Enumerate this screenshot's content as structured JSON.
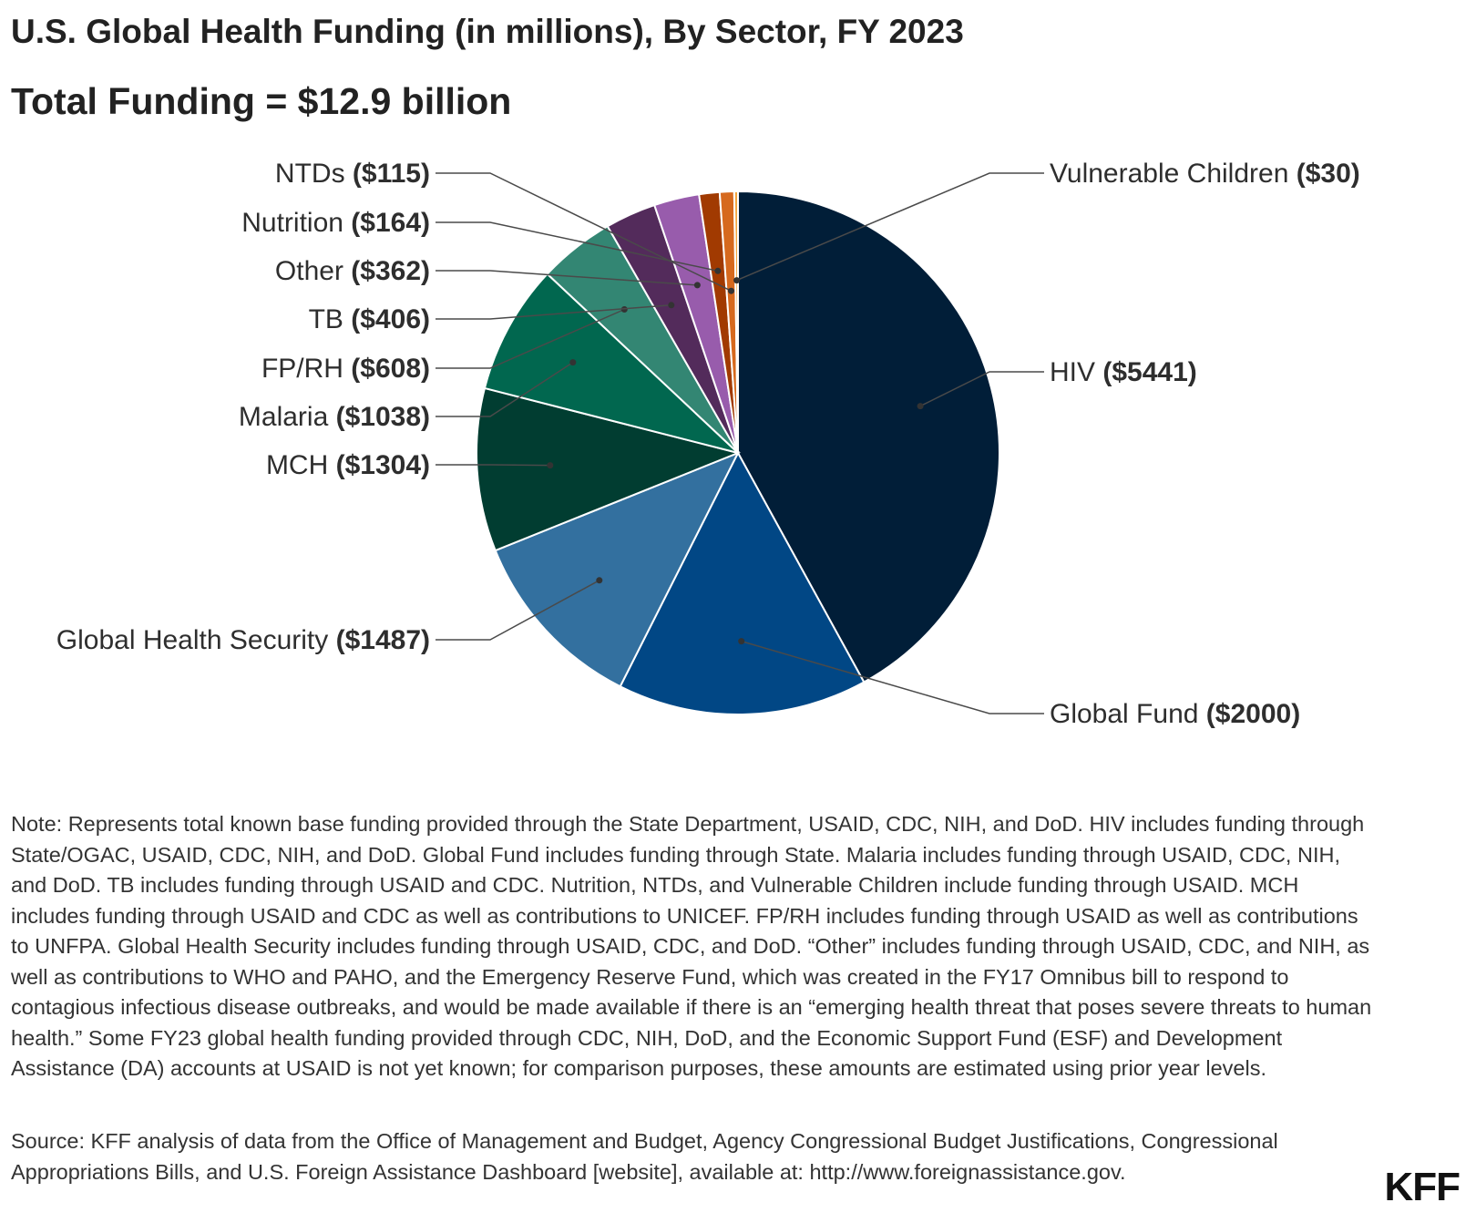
{
  "chart_data": {
    "type": "pie",
    "title": "U.S. Global Health Funding (in millions), By Sector, FY 2023",
    "subtitle": "Total Funding = $12.9 billion",
    "slices": [
      {
        "name": "HIV",
        "value": 5441,
        "value_label": "($5441)",
        "color": "#011e38"
      },
      {
        "name": "Global Fund",
        "value": 2000,
        "value_label": "($2000)",
        "color": "#014785"
      },
      {
        "name": "Global Health Security",
        "value": 1487,
        "value_label": "($1487)",
        "color": "#33709f"
      },
      {
        "name": "MCH",
        "value": 1304,
        "value_label": "($1304)",
        "color": "#013d31"
      },
      {
        "name": "Malaria",
        "value": 1038,
        "value_label": "($1038)",
        "color": "#01674f"
      },
      {
        "name": "FP/RH",
        "value": 608,
        "value_label": "($608)",
        "color": "#338673"
      },
      {
        "name": "TB",
        "value": 406,
        "value_label": "($406)",
        "color": "#532b5b"
      },
      {
        "name": "Other",
        "value": 362,
        "value_label": "($362)",
        "color": "#985cac"
      },
      {
        "name": "Nutrition",
        "value": 164,
        "value_label": "($164)",
        "color": "#a13a01"
      },
      {
        "name": "NTDs",
        "value": 115,
        "value_label": "($115)",
        "color": "#d6691e"
      },
      {
        "name": "Vulnerable Children",
        "value": 30,
        "value_label": "($30)",
        "color": "#f4a640"
      }
    ]
  },
  "note": "Note: Represents total known base funding provided through the State Department, USAID, CDC, NIH, and DoD. HIV includes funding through State/OGAC, USAID, CDC, NIH, and DoD. Global Fund includes funding through State. Malaria includes funding through USAID, CDC, NIH, and DoD. TB includes funding through USAID and CDC. Nutrition, NTDs, and Vulnerable Children include funding through USAID. MCH includes funding through USAID and CDC as well as contributions to UNICEF. FP/RH includes funding through USAID as well as contributions to UNFPA. Global Health Security includes funding through USAID, CDC, and DoD. “Other” includes funding through USAID, CDC, and NIH, as well as contributions to WHO and PAHO, and the Emergency Reserve Fund, which was created in the FY17 Omnibus bill to respond to contagious infectious disease outbreaks, and would be made available if there is an “emerging health threat that poses severe threats to human health.” Some FY23 global health funding provided through CDC, NIH, DoD, and the Economic Support Fund (ESF) and Development Assistance (DA) accounts at USAID is not yet known; for comparison purposes, these amounts are estimated using prior year levels.",
  "source": "Source: KFF analysis of data from the Office of Management and Budget, Agency Congressional Budget Justifications, Congressional Appropriations Bills, and U.S. Foreign Assistance Dashboard [website], available at: http://www.foreignassistance.gov.",
  "logo": "KFF"
}
